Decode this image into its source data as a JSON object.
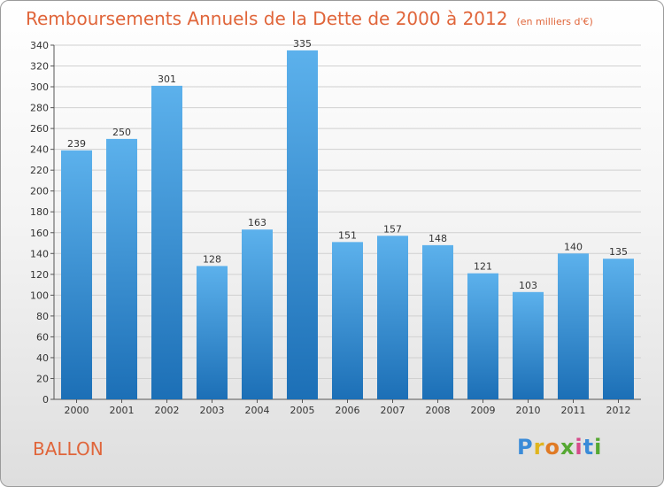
{
  "title": "Remboursements Annuels de la Dette de 2000 à 2012",
  "unit": "(en milliers d'€)",
  "commune": "BALLON",
  "logo": {
    "letters": [
      "P",
      "r",
      "o",
      "x",
      "i",
      "t",
      "i"
    ],
    "colors": [
      "#3a8bd8",
      "#e0b51e",
      "#e07a24",
      "#55a832",
      "#d64a8a",
      "#3a8bd8",
      "#55a832"
    ]
  },
  "colors": {
    "accent": "#e0653a",
    "bar_top": "#5cb1ec",
    "bar_bottom": "#1c6fb6"
  },
  "chart_data": {
    "type": "bar",
    "title": "Remboursements Annuels de la Dette de 2000 à 2012",
    "categories": [
      "2000",
      "2001",
      "2002",
      "2003",
      "2004",
      "2005",
      "2006",
      "2007",
      "2008",
      "2009",
      "2010",
      "2011",
      "2012"
    ],
    "values": [
      239,
      250,
      301,
      128,
      163,
      335,
      151,
      157,
      148,
      121,
      103,
      140,
      135
    ],
    "ylim": [
      0,
      340
    ],
    "yticks": [
      0,
      20,
      40,
      60,
      80,
      100,
      120,
      140,
      160,
      180,
      200,
      220,
      240,
      260,
      280,
      300,
      320,
      340
    ],
    "grid": true,
    "legend": "none"
  }
}
